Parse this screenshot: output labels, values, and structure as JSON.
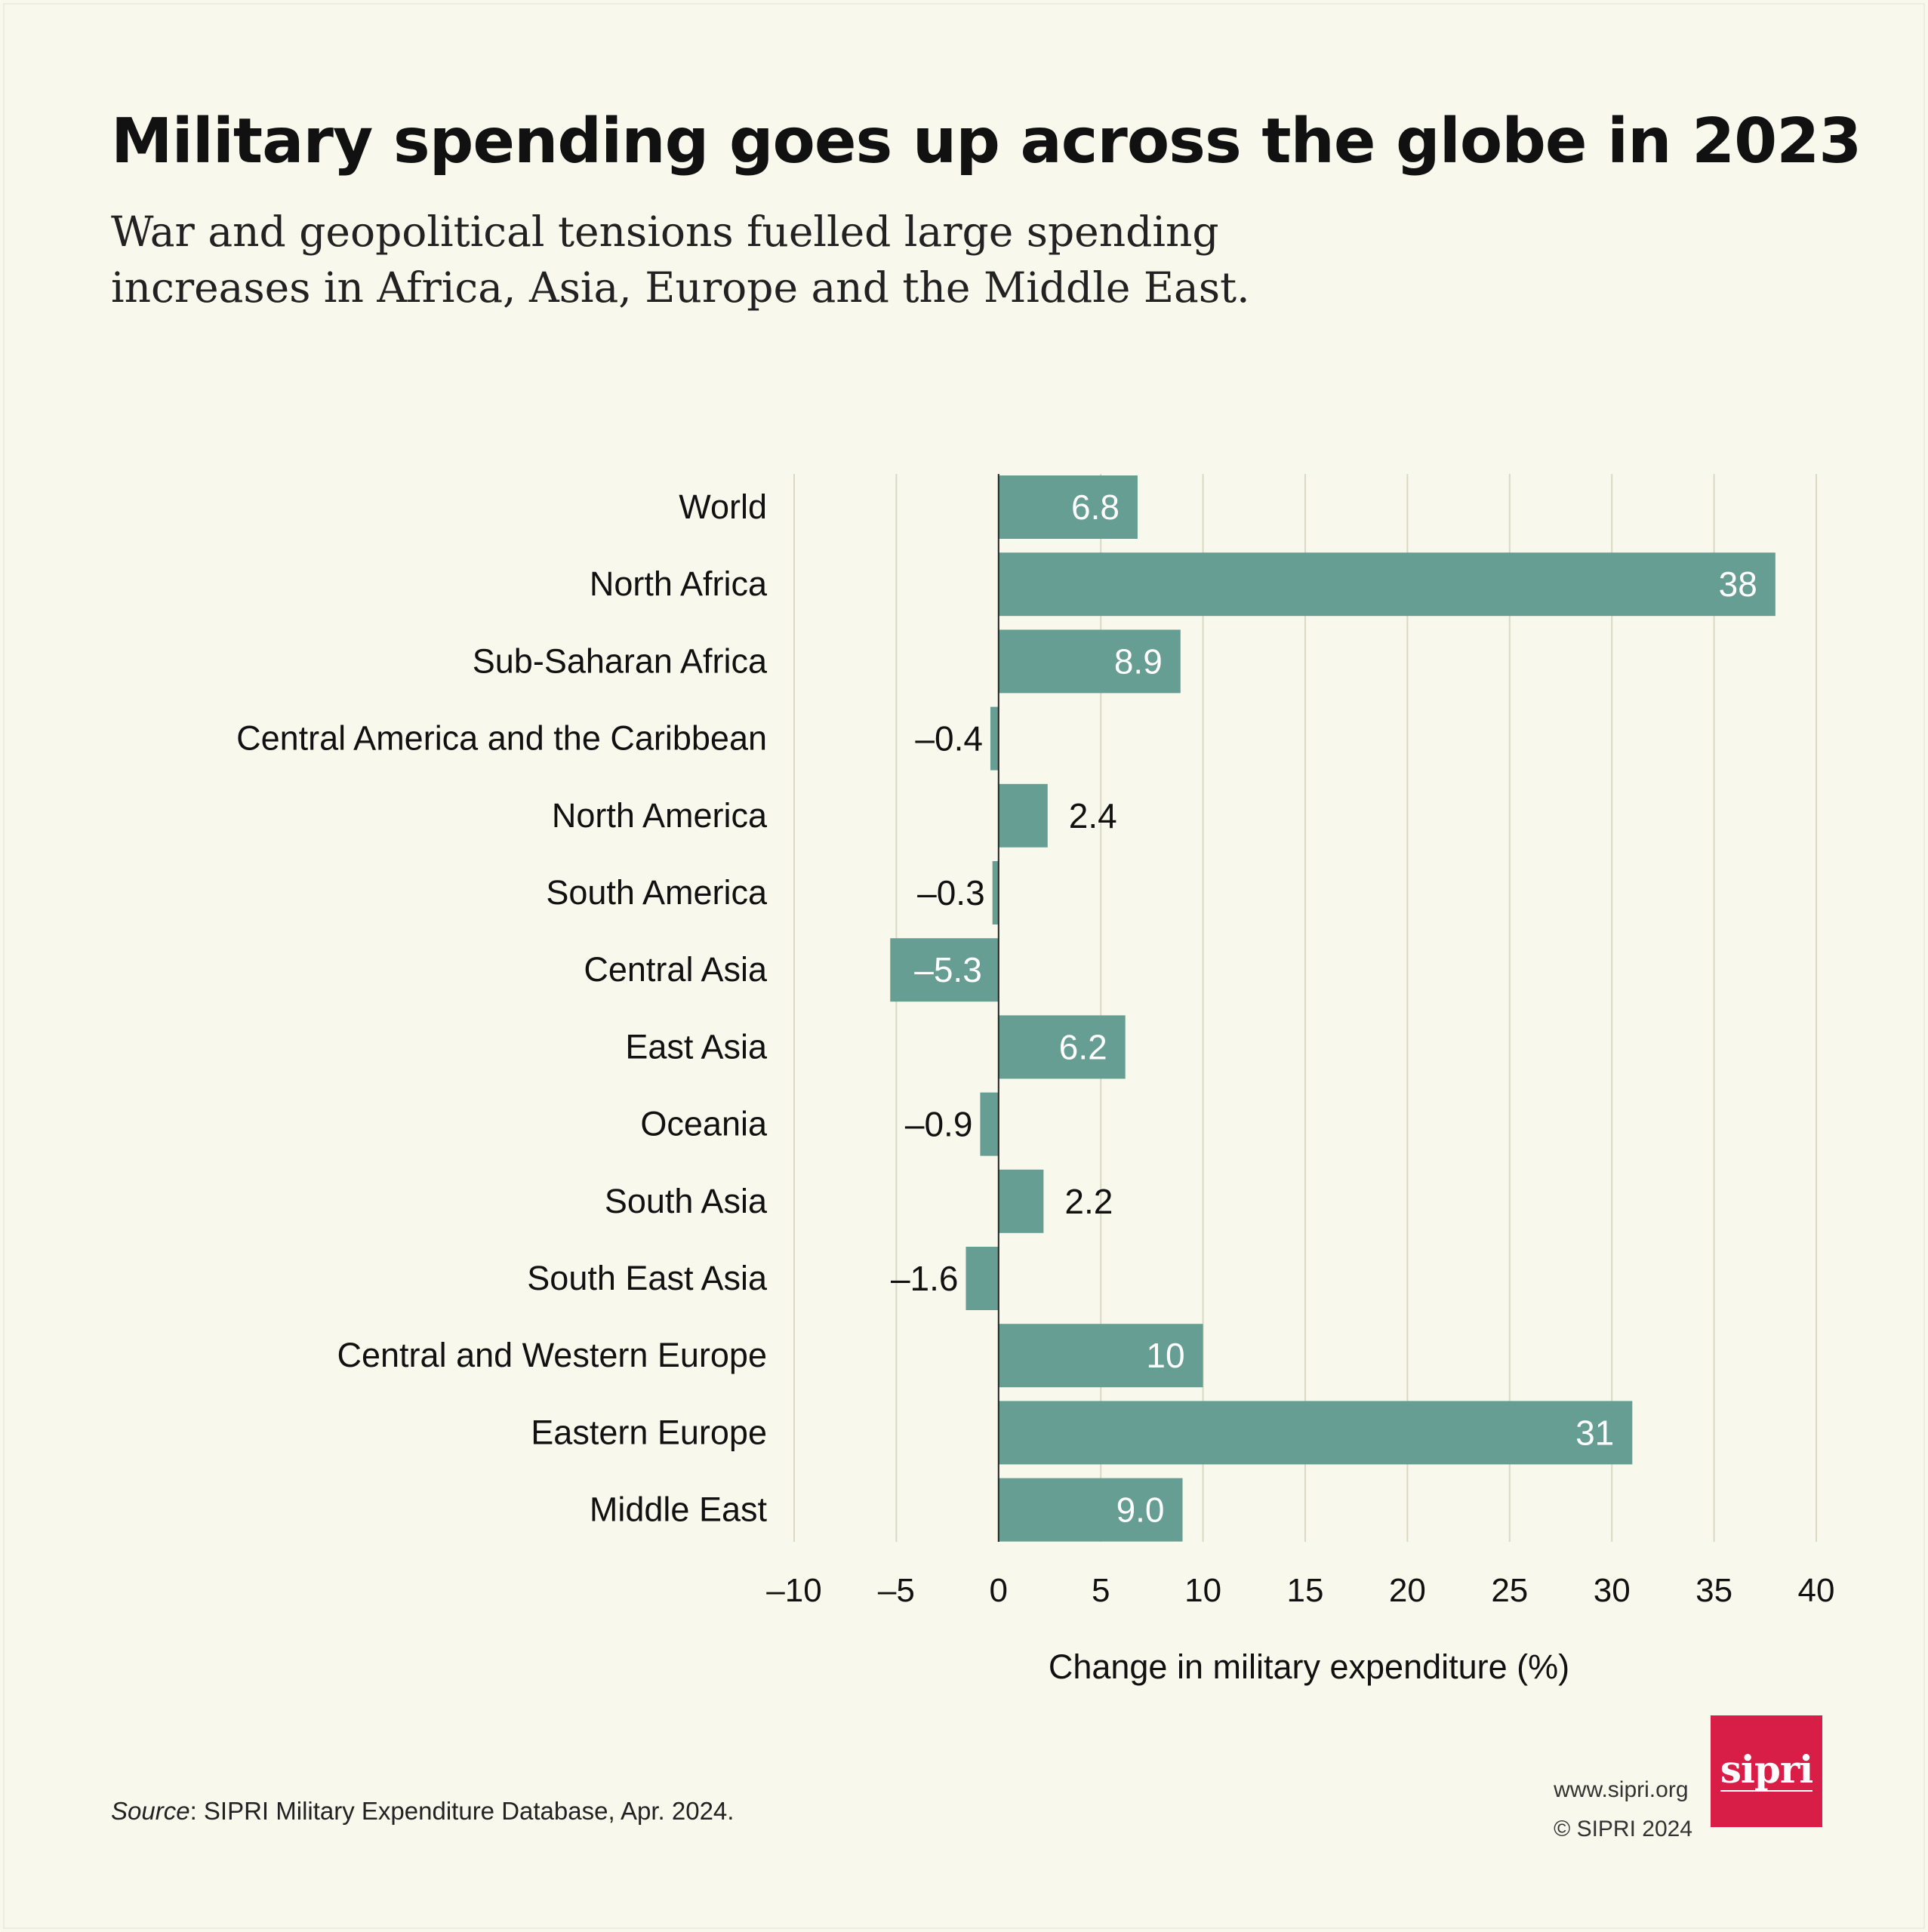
{
  "header": {
    "title": "Military spending goes up across the globe in 2023",
    "subtitle": "War and geopolitical tensions fuelled large spending increases in Africa, Asia, Europe and the Middle East."
  },
  "footer": {
    "source_label": "Source",
    "source_text": ": SIPRI Military Expenditure Database, Apr. 2024.",
    "url": "www.sipri.org",
    "copyright": "© SIPRI 2024",
    "logo_text": "sipri"
  },
  "colors": {
    "background": "#f8f8ec",
    "bar": "#679e93",
    "gridline": "#d9d9c6",
    "logo": "#d81e47"
  },
  "chart_data": {
    "type": "bar",
    "orientation": "horizontal",
    "categories": [
      "World",
      "North Africa",
      "Sub-Saharan Africa",
      "Central America and the Caribbean",
      "North America",
      "South America",
      "Central Asia",
      "East Asia",
      "Oceania",
      "South Asia",
      "South East Asia",
      "Central and Western Europe",
      "Eastern Europe",
      "Middle East"
    ],
    "values": [
      6.8,
      38,
      8.9,
      -0.4,
      2.4,
      -0.3,
      -5.3,
      6.2,
      -0.9,
      2.2,
      -1.6,
      10,
      31,
      9.0
    ],
    "value_labels": [
      "6.8",
      "38",
      "8.9",
      "–0.4",
      "2.4",
      "–0.3",
      "–5.3",
      "6.2",
      "–0.9",
      "2.2",
      "–1.6",
      "10",
      "31",
      "9.0"
    ],
    "xlabel": "Change in military expenditure (%)",
    "ylabel": "",
    "xlim": [
      -10,
      40
    ],
    "xticks": [
      -10,
      -5,
      0,
      5,
      10,
      15,
      20,
      25,
      30,
      35,
      40
    ],
    "xtick_labels": [
      "–10",
      "–5",
      "0",
      "5",
      "10",
      "15",
      "20",
      "25",
      "30",
      "35",
      "40"
    ],
    "grid": true,
    "legend": "none"
  }
}
